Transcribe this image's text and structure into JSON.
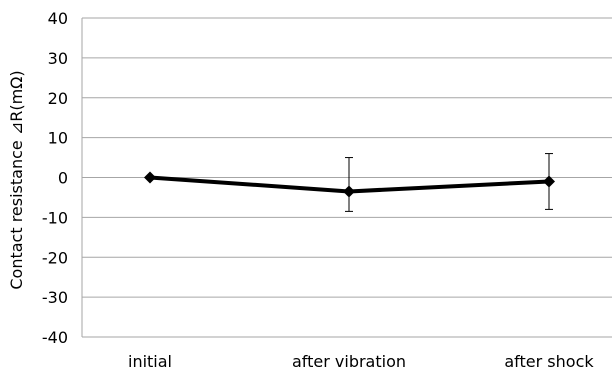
{
  "chart_data": {
    "type": "line",
    "title": "",
    "xlabel": "",
    "ylabel": "Contact resistance ⊿R(mΩ)",
    "categories": [
      "initial",
      "after vibration",
      "after shock"
    ],
    "series": [
      {
        "values": [
          0,
          -3.5,
          -1
        ],
        "error_high": [
          0,
          5,
          6
        ],
        "error_low": [
          0,
          -8.5,
          -8
        ],
        "color": "#000000",
        "marker": "diamond"
      }
    ],
    "ylim": [
      -40,
      40
    ],
    "yticks": [
      40,
      30,
      20,
      10,
      0,
      -10,
      -20,
      -30,
      -40
    ],
    "grid": "horizontal",
    "legend": "none",
    "grid_color": "#a6a6a6",
    "axis_color": "#a6a6a6"
  }
}
